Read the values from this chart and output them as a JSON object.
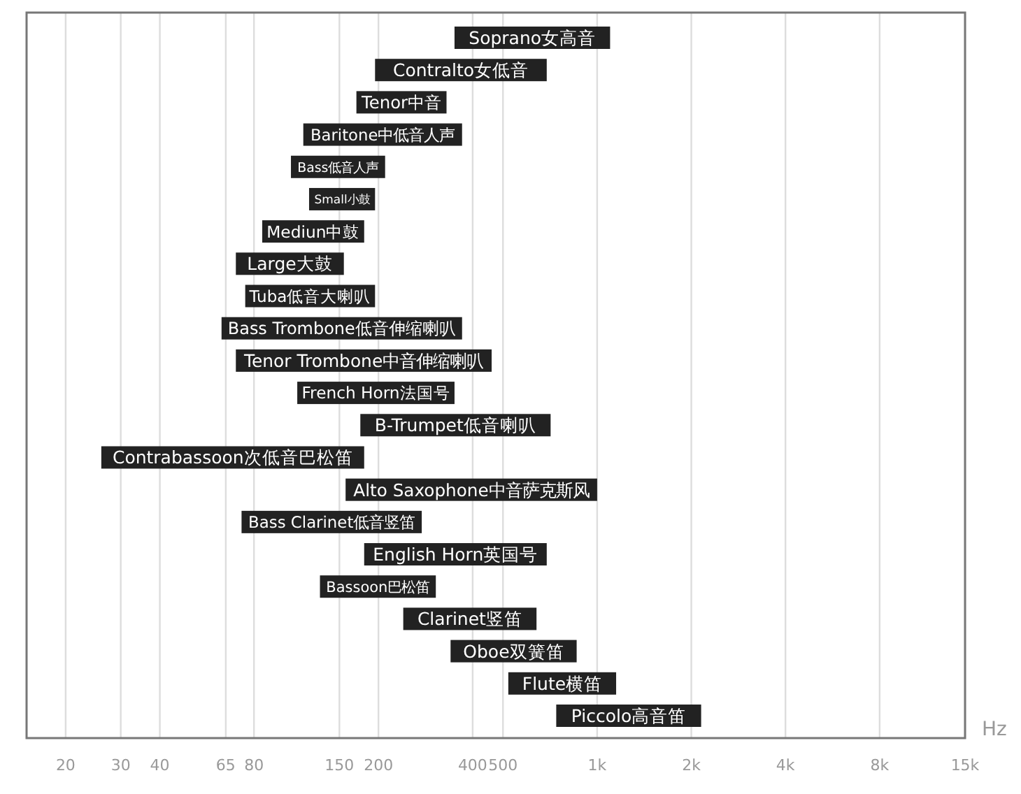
{
  "chart_data": {
    "type": "bar",
    "orientation": "horizontal",
    "log": "x",
    "xlabel": "Hz",
    "categories": [
      "Soprano女高音",
      "Contralto女低音",
      "Tenor中音",
      "Baritone中低音人声",
      "Bass低音人声",
      "Small小鼓",
      "Mediun中鼓",
      "Large大鼓",
      "Tuba低音大喇叭",
      "Bass Trombone低音伸缩喇叭",
      "Tenor Trombone中音伸缩喇叭",
      "French Horn法国号",
      "B-Trumpet低音喇叭",
      "Contrabassoon次低音巴松笛",
      "Alto Saxophone中音萨克斯风",
      "Bass Clarinet低音竖笛",
      "English Horn英国号",
      "Bassoon巴松笛",
      "Clarinet竖笛",
      "Oboe双簧笛",
      "Flute横笛",
      "Piccolo高音笛"
    ],
    "base": [
      350,
      195,
      170,
      115,
      105,
      120,
      85,
      70,
      75,
      63,
      70,
      110,
      175,
      26,
      157,
      73,
      180,
      130,
      240,
      340,
      520,
      740
    ],
    "values": [
      750,
      495,
      160,
      255,
      105,
      75,
      95,
      85,
      120,
      307,
      390,
      240,
      535,
      154,
      843,
      202,
      510,
      175,
      400,
      520,
      630,
      1410
    ],
    "color": "#222222",
    "xlim": [
      15,
      15000
    ],
    "xticks": [
      20,
      30,
      40,
      65,
      80,
      150,
      200,
      400,
      500,
      {
        "value": 1000,
        "label": "1k"
      },
      {
        "value": 2000,
        "label": "2k"
      },
      {
        "value": 4000,
        "label": "4k"
      },
      {
        "value": 8000,
        "label": "8k"
      },
      {
        "value": 15000,
        "label": "15k"
      }
    ],
    "grid": "x"
  }
}
